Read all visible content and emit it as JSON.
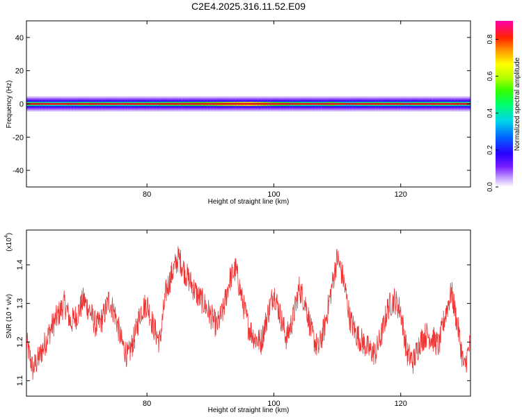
{
  "title": "C2E4.2025.316.11.52.E09",
  "chart_data": [
    {
      "type": "heatmap",
      "xlabel": "Height of straight line (km)",
      "ylabel": "Frequency (Hz)",
      "xlim": [
        61,
        131
      ],
      "ylim": [
        -50,
        50
      ],
      "xticks": [
        80,
        100,
        120
      ],
      "yticks": [
        -40,
        -20,
        0,
        20,
        40
      ],
      "colorbar": {
        "label": "Normalized spectral amplitude",
        "range": [
          0,
          0.9
        ],
        "ticks": [
          "0.0",
          "0.2",
          "0.4",
          "0.6",
          "0.8"
        ],
        "tick_values": [
          0,
          0.2,
          0.4,
          0.6,
          0.8
        ]
      },
      "spectral_line": {
        "center_hz": 0,
        "peak_amplitude": 0.9,
        "shoulder_amplitude": [
          [
            61,
            0.45
          ],
          [
            66,
            0.4
          ],
          [
            71,
            0.45
          ],
          [
            76,
            0.42
          ],
          [
            81,
            0.45
          ],
          [
            86,
            0.5
          ],
          [
            91,
            0.55
          ],
          [
            94,
            0.6
          ],
          [
            96,
            0.65
          ],
          [
            98,
            0.58
          ],
          [
            101,
            0.5
          ],
          [
            104,
            0.45
          ],
          [
            107,
            0.42
          ],
          [
            109,
            0.5
          ],
          [
            111,
            0.4
          ],
          [
            116,
            0.45
          ],
          [
            121,
            0.42
          ],
          [
            126,
            0.45
          ],
          [
            131,
            0.42
          ]
        ]
      }
    },
    {
      "type": "line",
      "xlabel": "Height of straight line (km)",
      "ylabel": "SNR (10 * v/v)",
      "scale_label": "(x10",
      "scale_exponent": "4",
      "xlim": [
        61,
        131
      ],
      "ylim": [
        1.06,
        1.49
      ],
      "xticks": [
        80,
        100,
        120
      ],
      "yticks": [
        1.1,
        1.2,
        1.3,
        1.4
      ],
      "color": "#ee3333",
      "series": [
        {
          "name": "",
          "x": [
            61,
            62,
            63,
            64,
            65,
            66,
            67,
            68,
            69,
            70,
            71,
            72,
            73,
            74,
            75,
            76,
            77,
            78,
            79,
            80,
            81,
            82,
            83,
            84,
            85,
            86,
            87,
            88,
            89,
            90,
            91,
            92,
            93,
            94,
            95,
            96,
            97,
            98,
            99,
            100,
            101,
            102,
            103,
            104,
            105,
            106,
            107,
            108,
            109,
            110,
            111,
            112,
            113,
            114,
            115,
            116,
            117,
            118,
            119,
            120,
            121,
            122,
            123,
            124,
            125,
            126,
            127,
            128,
            129,
            130,
            131
          ],
          "values": [
            1.2,
            1.13,
            1.16,
            1.2,
            1.24,
            1.27,
            1.3,
            1.25,
            1.27,
            1.31,
            1.28,
            1.24,
            1.26,
            1.31,
            1.27,
            1.2,
            1.16,
            1.21,
            1.28,
            1.3,
            1.24,
            1.2,
            1.33,
            1.38,
            1.42,
            1.38,
            1.35,
            1.32,
            1.3,
            1.27,
            1.24,
            1.28,
            1.36,
            1.39,
            1.31,
            1.24,
            1.21,
            1.2,
            1.27,
            1.33,
            1.27,
            1.21,
            1.26,
            1.34,
            1.3,
            1.22,
            1.18,
            1.24,
            1.33,
            1.42,
            1.36,
            1.26,
            1.22,
            1.2,
            1.18,
            1.17,
            1.22,
            1.29,
            1.31,
            1.28,
            1.17,
            1.15,
            1.2,
            1.22,
            1.21,
            1.19,
            1.27,
            1.33,
            1.24,
            1.13,
            1.2
          ]
        }
      ]
    }
  ]
}
